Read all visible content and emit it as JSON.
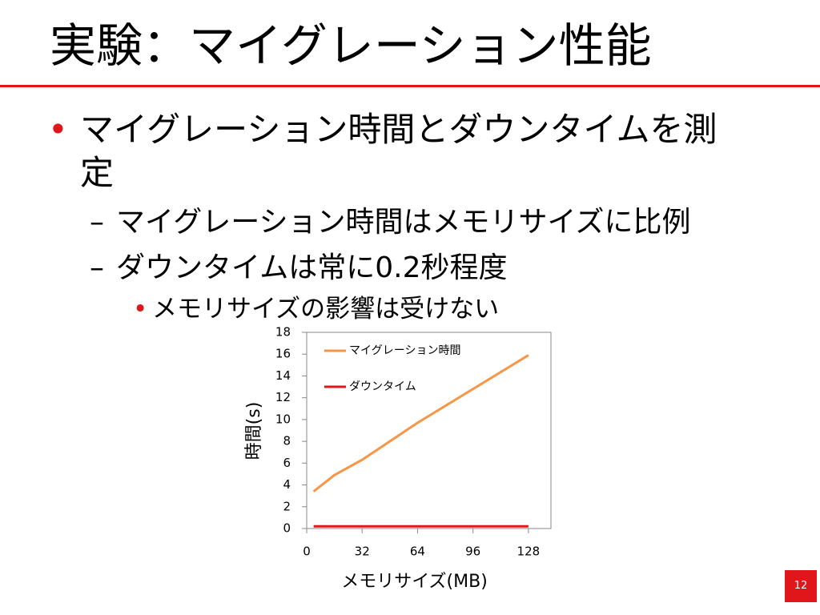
{
  "title": "実験：マイグレーション性能",
  "bullets": [
    {
      "text": "マイグレーション時間とダウンタイムを測定",
      "level": 1
    },
    {
      "text": "マイグレーション時間はメモリサイズに比例",
      "level": 2
    },
    {
      "text": "ダウンタイムは常に0.2秒程度",
      "level": 2
    },
    {
      "text": "メモリサイズの影響は受けない",
      "level": 3
    }
  ],
  "bullet_marks": {
    "level1": "•",
    "level2": "–",
    "level3": "•"
  },
  "page_number": "12",
  "chart_data": {
    "type": "line",
    "x_label": "メモリサイズ(MB)",
    "y_label": "時間(s)",
    "x": [
      4,
      8,
      16,
      32,
      64,
      128
    ],
    "series": [
      {
        "name": "マイグレーション時間",
        "color": "#f79646",
        "values": [
          3.4,
          3.9,
          4.9,
          6.3,
          9.7,
          15.9
        ]
      },
      {
        "name": "ダウンタイム",
        "color": "#e0161b",
        "values": [
          0.2,
          0.2,
          0.2,
          0.2,
          0.2,
          0.2
        ]
      }
    ],
    "xlim": [
      0,
      141
    ],
    "xticks": [
      0,
      32,
      64,
      96,
      128
    ],
    "ylim": [
      0,
      18
    ],
    "yticks": [
      0,
      2,
      4,
      6,
      8,
      10,
      12,
      14,
      16,
      18
    ],
    "legend": "upper-left",
    "grid": false
  }
}
